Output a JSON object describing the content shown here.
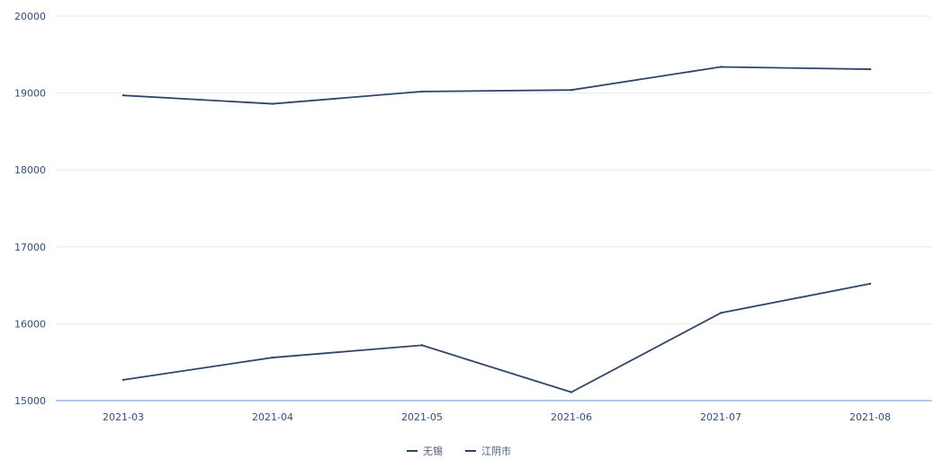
{
  "chart_data": {
    "type": "line",
    "title": "",
    "xlabel": "",
    "ylabel": "",
    "categories": [
      "2021-03",
      "2021-04",
      "2021-05",
      "2021-06",
      "2021-07",
      "2021-08"
    ],
    "ylim": [
      15000,
      20000
    ],
    "yticks": [
      "15000",
      "16000",
      "17000",
      "18000",
      "19000",
      "20000"
    ],
    "grid": "horizontal",
    "legend_position": "bottom-center",
    "series": [
      {
        "name": "无锡",
        "values": [
          18970,
          18860,
          19020,
          19040,
          19340,
          19310
        ],
        "color": "#2f4569"
      },
      {
        "name": "江阴市",
        "values": [
          15270,
          15560,
          15720,
          15110,
          16140,
          16520
        ],
        "color": "#2f4569"
      }
    ]
  }
}
